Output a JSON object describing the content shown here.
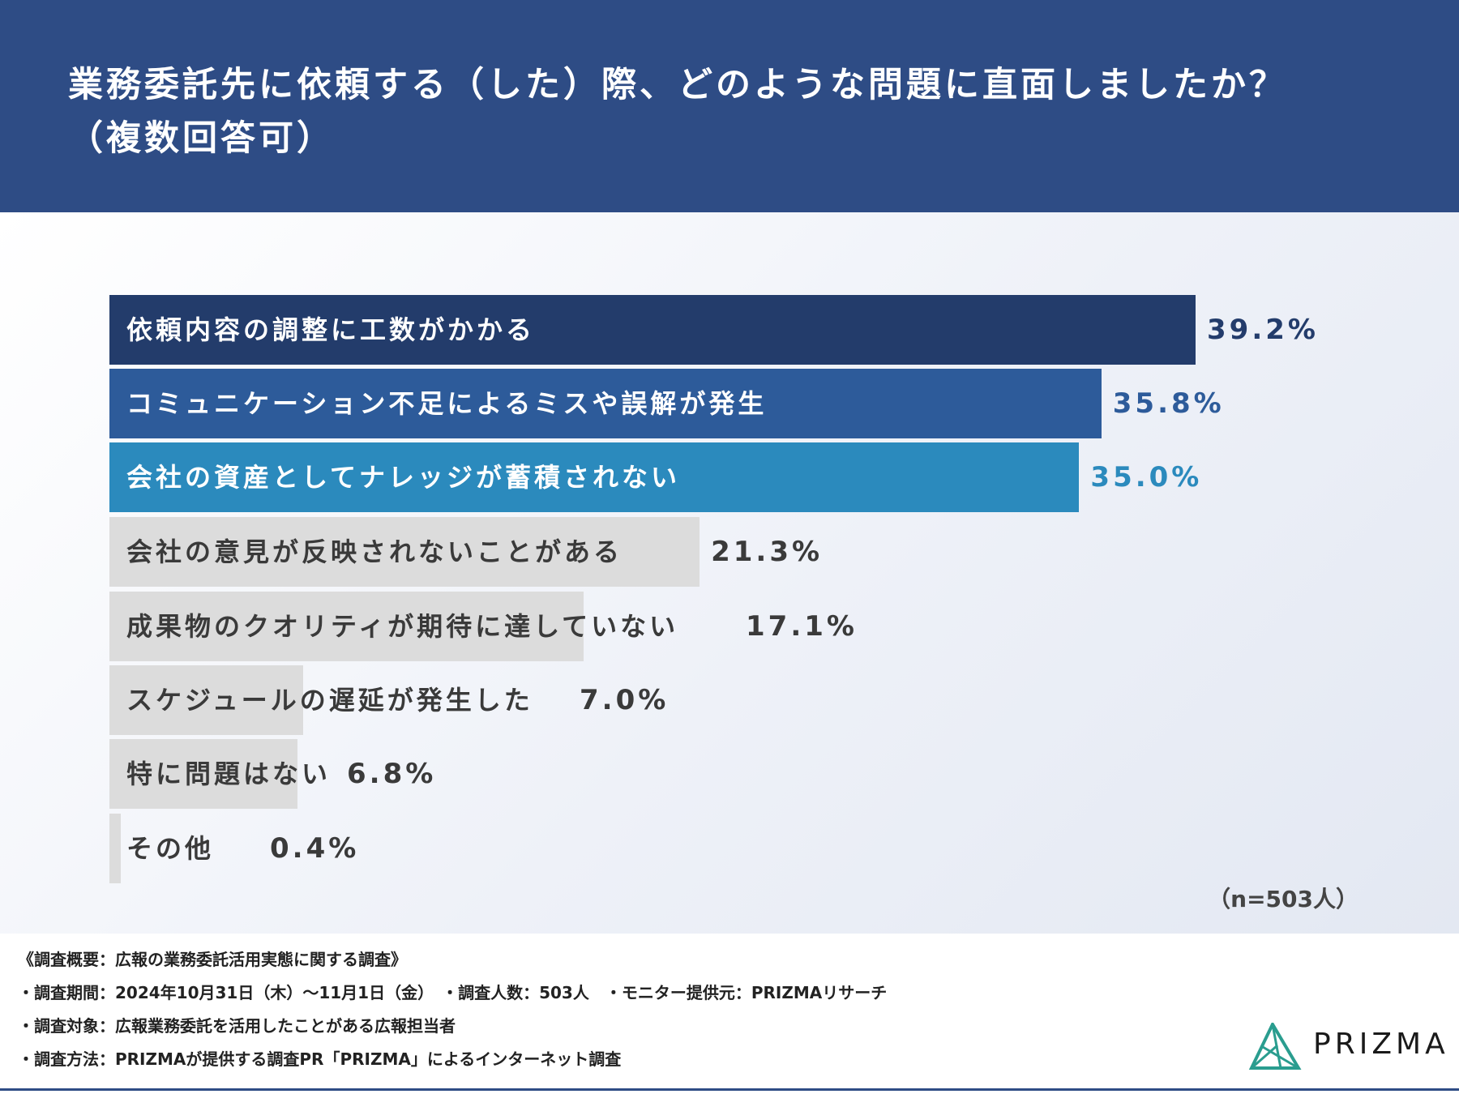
{
  "header": {
    "title_line1": "業務委託先に依頼する（した）際、どのような問題に直面しましたか？",
    "title_line2": "（複数回答可）"
  },
  "chart_data": {
    "type": "bar",
    "orientation": "horizontal",
    "title": "業務委託先に依頼する（した）際、どのような問題に直面しましたか？（複数回答可）",
    "categories": [
      "依頼内容の調整に工数がかかる",
      "コミュニケーション不足によるミスや誤解が発生",
      "会社の資産としてナレッジが蓄積されない",
      "会社の意見が反映されないことがある",
      "成果物のクオリティが期待に達していない",
      "スケジュールの遅延が発生した",
      "特に問題はない",
      "その他"
    ],
    "values": [
      39.2,
      35.8,
      35.0,
      21.3,
      17.1,
      7.0,
      6.8,
      0.4
    ],
    "value_labels": [
      "39.2%",
      "35.8%",
      "35.0%",
      "21.3%",
      "17.1%",
      "7.0%",
      "6.8%",
      "0.4%"
    ],
    "unit": "%",
    "xlim": [
      0,
      40
    ],
    "grid": false,
    "legend": "none",
    "colors": [
      "#233c6b",
      "#2d5b9a",
      "#2b8abd",
      "#dcdcdc",
      "#dcdcdc",
      "#dcdcdc",
      "#dcdcdc",
      "#dcdcdc"
    ],
    "label_colors": [
      "#ffffff",
      "#ffffff",
      "#ffffff",
      "#3a3a3a",
      "#3a3a3a",
      "#3a3a3a",
      "#3a3a3a",
      "#3a3a3a"
    ],
    "value_colors": [
      "#233c6b",
      "#2d5b9a",
      "#2b8abd",
      "#3a3a3a",
      "#3a3a3a",
      "#3a3a3a",
      "#3a3a3a",
      "#3a3a3a"
    ],
    "sample_note": "（n=503人）"
  },
  "footer": {
    "lines": [
      "《調査概要：広報の業務委託活用実態に関する調査》",
      "・調査期間：2024年10月31日（木）〜11月1日（金）　・調査人数：503人　・モニター提供元：PRIZMAリサーチ",
      "・調査対象：広報業務委託を活用したことがある広報担当者",
      "・調査方法：PRIZMAが提供する調査PR「PRIZMA」によるインターネット調査"
    ]
  },
  "logo": {
    "text": "PRIZMA",
    "icon": "prism-triangle-icon",
    "color": "#2a9d8f"
  }
}
